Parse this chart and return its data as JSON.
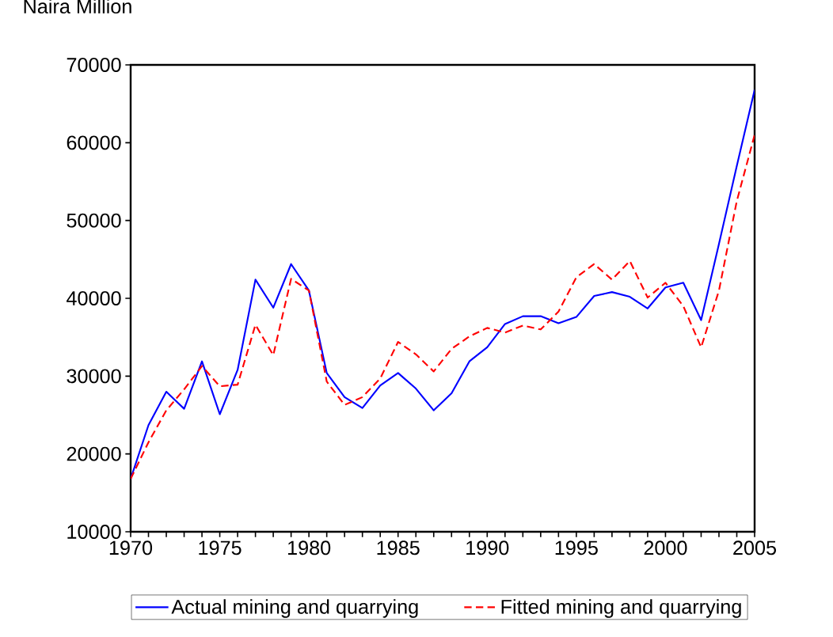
{
  "chart_data": {
    "type": "line",
    "ylabel": "Naira Million",
    "x": [
      1970,
      1971,
      1972,
      1973,
      1974,
      1975,
      1976,
      1977,
      1978,
      1979,
      1980,
      1981,
      1982,
      1983,
      1984,
      1985,
      1986,
      1987,
      1988,
      1989,
      1990,
      1991,
      1992,
      1993,
      1994,
      1995,
      1996,
      1997,
      1998,
      1999,
      2000,
      2001,
      2002,
      2003,
      2004,
      2005
    ],
    "series": [
      {
        "name": "Actual mining and quarrying",
        "color": "#0000ff",
        "line_style": "solid",
        "values": [
          16800,
          23700,
          28000,
          25800,
          31900,
          25100,
          30800,
          42400,
          38800,
          44400,
          41000,
          30400,
          27300,
          25900,
          28800,
          30400,
          28400,
          25600,
          27800,
          31900,
          33700,
          36700,
          37700,
          37700,
          36800,
          37600,
          40300,
          40800,
          40200,
          38700,
          41400,
          42000,
          37200,
          47000,
          57000,
          66800
        ]
      },
      {
        "name": "Fitted mining and quarrying",
        "color": "#ff0000",
        "line_style": "dashed",
        "values": [
          16800,
          21500,
          25600,
          28300,
          31300,
          28700,
          28900,
          36600,
          32700,
          42500,
          41000,
          29300,
          26300,
          27300,
          29700,
          34400,
          32800,
          30600,
          33500,
          35100,
          36200,
          35600,
          36500,
          36000,
          38300,
          42700,
          44400,
          42400,
          44800,
          40100,
          42000,
          39000,
          33700,
          41000,
          52500,
          61000
        ]
      }
    ],
    "xlim": [
      1970,
      2005
    ],
    "xticks": [
      1970,
      1975,
      1980,
      1985,
      1990,
      1995,
      2000,
      2005
    ],
    "ylim": [
      10000,
      70000
    ],
    "yticks": [
      10000,
      20000,
      30000,
      40000,
      50000,
      60000,
      70000
    ],
    "grid": false,
    "legend": "bottom"
  }
}
